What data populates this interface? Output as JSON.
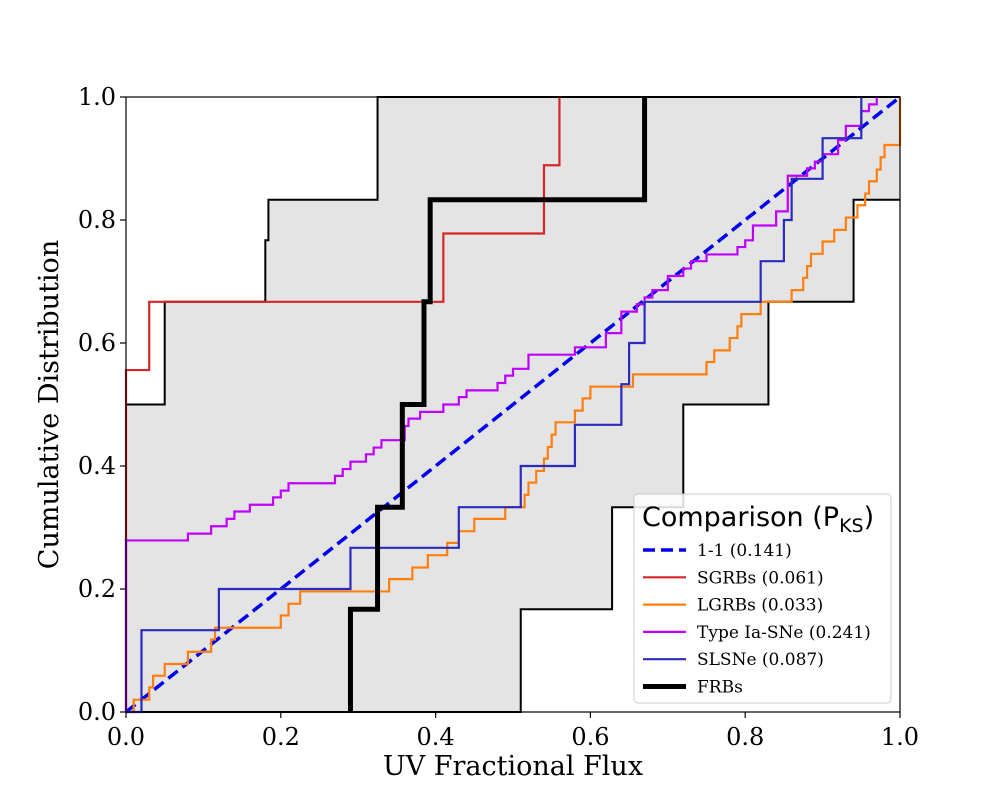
{
  "chart_data": {
    "type": "line",
    "title": "",
    "xlabel": "UV Fractional Flux",
    "ylabel": "Cumulative Distribution",
    "xlim": [
      0.0,
      1.0
    ],
    "ylim": [
      0.0,
      1.0
    ],
    "xticks": [
      "0.0",
      "0.2",
      "0.4",
      "0.6",
      "0.8",
      "1.0"
    ],
    "yticks": [
      "0.0",
      "0.2",
      "0.4",
      "0.6",
      "0.8",
      "1.0"
    ],
    "grid": false,
    "legend": {
      "title": "Comparison (P",
      "title_sub": "KS",
      "title_close": ")",
      "placement": "lower-right",
      "entries": [
        "1-1 (0.141)",
        "SGRBs (0.061)",
        "LGRBs (0.033)",
        "Type Ia-SNe (0.241)",
        "SLSNe (0.087)",
        "FRBs"
      ]
    },
    "band": {
      "name": "FRB confidence band",
      "fill_color": "#e4e4e4",
      "edge_color": "#000000",
      "upper": [
        [
          0.0,
          0.5
        ],
        [
          0.05,
          0.5
        ],
        [
          0.05,
          0.667
        ],
        [
          0.18,
          0.667
        ],
        [
          0.18,
          0.767
        ],
        [
          0.184,
          0.767
        ],
        [
          0.184,
          0.833
        ],
        [
          0.325,
          0.833
        ],
        [
          0.325,
          1.0
        ],
        [
          1.0,
          1.0
        ]
      ],
      "lower": [
        [
          0.0,
          0.0
        ],
        [
          0.51,
          0.0
        ],
        [
          0.51,
          0.167
        ],
        [
          0.628,
          0.167
        ],
        [
          0.628,
          0.333
        ],
        [
          0.72,
          0.333
        ],
        [
          0.72,
          0.5
        ],
        [
          0.83,
          0.5
        ],
        [
          0.83,
          0.667
        ],
        [
          0.94,
          0.667
        ],
        [
          0.94,
          0.833
        ],
        [
          1.0,
          0.833
        ]
      ]
    },
    "series": [
      {
        "name": "1-1 (0.141)",
        "color": "#0000ee",
        "style": "dashed",
        "kind": "line",
        "points": [
          [
            0.0,
            0.0
          ],
          [
            1.0,
            1.0
          ]
        ]
      },
      {
        "name": "SGRBs (0.061)",
        "color": "#d62728",
        "style": "solid",
        "kind": "step",
        "points": [
          [
            0.0,
            0.0
          ],
          [
            0.0,
            0.556
          ],
          [
            0.03,
            0.556
          ],
          [
            0.03,
            0.667
          ],
          [
            0.41,
            0.667
          ],
          [
            0.41,
            0.778
          ],
          [
            0.54,
            0.778
          ],
          [
            0.54,
            0.889
          ],
          [
            0.56,
            0.889
          ],
          [
            0.56,
            1.0
          ]
        ]
      },
      {
        "name": "LGRBs (0.033)",
        "color": "#ff7f0e",
        "style": "solid",
        "kind": "step",
        "points": [
          [
            0.0,
            0.0
          ],
          [
            0.01,
            0.0
          ],
          [
            0.01,
            0.02
          ],
          [
            0.03,
            0.02
          ],
          [
            0.03,
            0.04
          ],
          [
            0.035,
            0.04
          ],
          [
            0.035,
            0.059
          ],
          [
            0.05,
            0.059
          ],
          [
            0.05,
            0.078
          ],
          [
            0.08,
            0.078
          ],
          [
            0.08,
            0.098
          ],
          [
            0.11,
            0.098
          ],
          [
            0.11,
            0.118
          ],
          [
            0.115,
            0.118
          ],
          [
            0.115,
            0.137
          ],
          [
            0.2,
            0.137
          ],
          [
            0.2,
            0.157
          ],
          [
            0.21,
            0.157
          ],
          [
            0.21,
            0.176
          ],
          [
            0.225,
            0.176
          ],
          [
            0.225,
            0.196
          ],
          [
            0.34,
            0.196
          ],
          [
            0.34,
            0.216
          ],
          [
            0.37,
            0.216
          ],
          [
            0.37,
            0.235
          ],
          [
            0.39,
            0.235
          ],
          [
            0.39,
            0.255
          ],
          [
            0.415,
            0.255
          ],
          [
            0.415,
            0.275
          ],
          [
            0.43,
            0.275
          ],
          [
            0.43,
            0.294
          ],
          [
            0.45,
            0.294
          ],
          [
            0.45,
            0.314
          ],
          [
            0.49,
            0.314
          ],
          [
            0.49,
            0.333
          ],
          [
            0.515,
            0.333
          ],
          [
            0.515,
            0.353
          ],
          [
            0.52,
            0.353
          ],
          [
            0.52,
            0.373
          ],
          [
            0.53,
            0.373
          ],
          [
            0.53,
            0.392
          ],
          [
            0.54,
            0.392
          ],
          [
            0.54,
            0.412
          ],
          [
            0.545,
            0.412
          ],
          [
            0.545,
            0.431
          ],
          [
            0.55,
            0.431
          ],
          [
            0.55,
            0.451
          ],
          [
            0.555,
            0.451
          ],
          [
            0.555,
            0.471
          ],
          [
            0.58,
            0.471
          ],
          [
            0.58,
            0.49
          ],
          [
            0.59,
            0.49
          ],
          [
            0.59,
            0.51
          ],
          [
            0.6,
            0.51
          ],
          [
            0.6,
            0.529
          ],
          [
            0.655,
            0.529
          ],
          [
            0.655,
            0.549
          ],
          [
            0.75,
            0.549
          ],
          [
            0.75,
            0.569
          ],
          [
            0.76,
            0.569
          ],
          [
            0.76,
            0.588
          ],
          [
            0.78,
            0.588
          ],
          [
            0.78,
            0.608
          ],
          [
            0.79,
            0.608
          ],
          [
            0.79,
            0.627
          ],
          [
            0.795,
            0.627
          ],
          [
            0.795,
            0.647
          ],
          [
            0.82,
            0.647
          ],
          [
            0.82,
            0.667
          ],
          [
            0.86,
            0.667
          ],
          [
            0.86,
            0.686
          ],
          [
            0.875,
            0.686
          ],
          [
            0.875,
            0.706
          ],
          [
            0.88,
            0.706
          ],
          [
            0.88,
            0.725
          ],
          [
            0.885,
            0.725
          ],
          [
            0.885,
            0.745
          ],
          [
            0.9,
            0.745
          ],
          [
            0.9,
            0.765
          ],
          [
            0.915,
            0.765
          ],
          [
            0.915,
            0.784
          ],
          [
            0.93,
            0.784
          ],
          [
            0.93,
            0.804
          ],
          [
            0.945,
            0.804
          ],
          [
            0.945,
            0.824
          ],
          [
            0.955,
            0.824
          ],
          [
            0.955,
            0.843
          ],
          [
            0.96,
            0.843
          ],
          [
            0.96,
            0.863
          ],
          [
            0.97,
            0.863
          ],
          [
            0.97,
            0.882
          ],
          [
            0.975,
            0.882
          ],
          [
            0.975,
            0.902
          ],
          [
            0.98,
            0.902
          ],
          [
            0.98,
            0.922
          ],
          [
            1.0,
            0.922
          ],
          [
            1.0,
            1.0
          ]
        ]
      },
      {
        "name": "Type Ia-SNe (0.241)",
        "color": "#bf00ff",
        "style": "solid",
        "kind": "step",
        "points": [
          [
            0.0,
            0.0
          ],
          [
            0.0,
            0.279
          ],
          [
            0.08,
            0.279
          ],
          [
            0.08,
            0.29
          ],
          [
            0.11,
            0.29
          ],
          [
            0.11,
            0.302
          ],
          [
            0.13,
            0.302
          ],
          [
            0.13,
            0.314
          ],
          [
            0.14,
            0.314
          ],
          [
            0.14,
            0.326
          ],
          [
            0.16,
            0.326
          ],
          [
            0.16,
            0.337
          ],
          [
            0.19,
            0.337
          ],
          [
            0.19,
            0.349
          ],
          [
            0.2,
            0.349
          ],
          [
            0.2,
            0.36
          ],
          [
            0.21,
            0.36
          ],
          [
            0.21,
            0.372
          ],
          [
            0.27,
            0.372
          ],
          [
            0.27,
            0.384
          ],
          [
            0.28,
            0.384
          ],
          [
            0.28,
            0.395
          ],
          [
            0.29,
            0.395
          ],
          [
            0.29,
            0.407
          ],
          [
            0.31,
            0.407
          ],
          [
            0.31,
            0.419
          ],
          [
            0.32,
            0.419
          ],
          [
            0.32,
            0.43
          ],
          [
            0.33,
            0.43
          ],
          [
            0.33,
            0.442
          ],
          [
            0.36,
            0.442
          ],
          [
            0.36,
            0.465
          ],
          [
            0.365,
            0.465
          ],
          [
            0.365,
            0.477
          ],
          [
            0.38,
            0.477
          ],
          [
            0.38,
            0.488
          ],
          [
            0.41,
            0.488
          ],
          [
            0.41,
            0.5
          ],
          [
            0.43,
            0.5
          ],
          [
            0.43,
            0.512
          ],
          [
            0.44,
            0.512
          ],
          [
            0.44,
            0.523
          ],
          [
            0.48,
            0.523
          ],
          [
            0.48,
            0.535
          ],
          [
            0.49,
            0.535
          ],
          [
            0.49,
            0.547
          ],
          [
            0.5,
            0.547
          ],
          [
            0.5,
            0.558
          ],
          [
            0.52,
            0.558
          ],
          [
            0.52,
            0.581
          ],
          [
            0.58,
            0.581
          ],
          [
            0.58,
            0.593
          ],
          [
            0.62,
            0.593
          ],
          [
            0.62,
            0.616
          ],
          [
            0.64,
            0.616
          ],
          [
            0.64,
            0.651
          ],
          [
            0.66,
            0.651
          ],
          [
            0.66,
            0.663
          ],
          [
            0.67,
            0.663
          ],
          [
            0.67,
            0.674
          ],
          [
            0.68,
            0.674
          ],
          [
            0.68,
            0.686
          ],
          [
            0.7,
            0.686
          ],
          [
            0.7,
            0.709
          ],
          [
            0.72,
            0.709
          ],
          [
            0.72,
            0.721
          ],
          [
            0.73,
            0.721
          ],
          [
            0.73,
            0.733
          ],
          [
            0.75,
            0.733
          ],
          [
            0.75,
            0.744
          ],
          [
            0.79,
            0.744
          ],
          [
            0.79,
            0.756
          ],
          [
            0.8,
            0.756
          ],
          [
            0.8,
            0.767
          ],
          [
            0.81,
            0.767
          ],
          [
            0.81,
            0.791
          ],
          [
            0.84,
            0.791
          ],
          [
            0.84,
            0.814
          ],
          [
            0.855,
            0.814
          ],
          [
            0.855,
            0.872
          ],
          [
            0.88,
            0.872
          ],
          [
            0.88,
            0.884
          ],
          [
            0.89,
            0.884
          ],
          [
            0.89,
            0.895
          ],
          [
            0.9,
            0.895
          ],
          [
            0.9,
            0.907
          ],
          [
            0.92,
            0.907
          ],
          [
            0.92,
            0.93
          ],
          [
            0.93,
            0.93
          ],
          [
            0.93,
            0.953
          ],
          [
            0.95,
            0.953
          ],
          [
            0.95,
            0.977
          ],
          [
            0.96,
            0.977
          ],
          [
            0.96,
            0.988
          ],
          [
            0.97,
            0.988
          ],
          [
            0.97,
            1.0
          ]
        ]
      },
      {
        "name": "SLSNe (0.087)",
        "color": "#2b2bbf",
        "style": "solid",
        "kind": "step",
        "points": [
          [
            0.0,
            0.0
          ],
          [
            0.02,
            0.0
          ],
          [
            0.02,
            0.133
          ],
          [
            0.12,
            0.133
          ],
          [
            0.12,
            0.2
          ],
          [
            0.29,
            0.2
          ],
          [
            0.29,
            0.267
          ],
          [
            0.43,
            0.267
          ],
          [
            0.43,
            0.333
          ],
          [
            0.51,
            0.333
          ],
          [
            0.51,
            0.4
          ],
          [
            0.58,
            0.4
          ],
          [
            0.58,
            0.467
          ],
          [
            0.64,
            0.467
          ],
          [
            0.64,
            0.533
          ],
          [
            0.65,
            0.533
          ],
          [
            0.65,
            0.6
          ],
          [
            0.67,
            0.6
          ],
          [
            0.67,
            0.667
          ],
          [
            0.82,
            0.667
          ],
          [
            0.82,
            0.733
          ],
          [
            0.85,
            0.733
          ],
          [
            0.85,
            0.8
          ],
          [
            0.86,
            0.8
          ],
          [
            0.86,
            0.867
          ],
          [
            0.9,
            0.867
          ],
          [
            0.9,
            0.933
          ],
          [
            0.95,
            0.933
          ],
          [
            0.95,
            1.0
          ]
        ]
      },
      {
        "name": "FRBs",
        "color": "#000000",
        "style": "solid",
        "kind": "step-thick",
        "points": [
          [
            0.29,
            0.0
          ],
          [
            0.29,
            0.167
          ],
          [
            0.325,
            0.167
          ],
          [
            0.325,
            0.333
          ],
          [
            0.357,
            0.333
          ],
          [
            0.357,
            0.5
          ],
          [
            0.385,
            0.5
          ],
          [
            0.385,
            0.667
          ],
          [
            0.393,
            0.667
          ],
          [
            0.393,
            0.833
          ],
          [
            0.67,
            0.833
          ],
          [
            0.67,
            1.0
          ]
        ]
      }
    ]
  }
}
